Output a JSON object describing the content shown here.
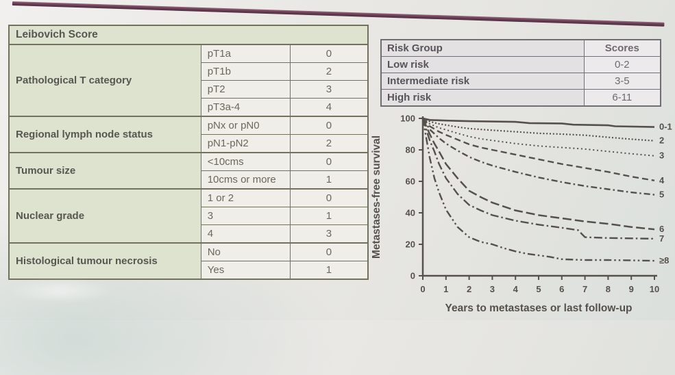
{
  "leibovich_table": {
    "title": "Leibovich Score",
    "groups": [
      {
        "category": "Pathological T category",
        "rows": [
          {
            "value": "pT1a",
            "score": "0"
          },
          {
            "value": "pT1b",
            "score": "2"
          },
          {
            "value": "pT2",
            "score": "3"
          },
          {
            "value": "pT3a-4",
            "score": "4"
          }
        ]
      },
      {
        "category": "Regional lymph node status",
        "rows": [
          {
            "value": "pNx or pN0",
            "score": "0"
          },
          {
            "value": "pN1-pN2",
            "score": "2"
          }
        ]
      },
      {
        "category": "Tumour size",
        "rows": [
          {
            "value": "<10cms",
            "score": "0"
          },
          {
            "value": "10cms or more",
            "score": "1"
          }
        ]
      },
      {
        "category": "Nuclear grade",
        "rows": [
          {
            "value": "1 or 2",
            "score": "0"
          },
          {
            "value": "3",
            "score": "1"
          },
          {
            "value": "4",
            "score": "3"
          }
        ]
      },
      {
        "category": "Histological tumour necrosis",
        "rows": [
          {
            "value": "No",
            "score": "0"
          },
          {
            "value": "Yes",
            "score": "1"
          }
        ]
      }
    ]
  },
  "risk_table": {
    "headers": [
      "Risk Group",
      "Scores"
    ],
    "rows": [
      {
        "label": "Low risk",
        "scores": "0-2"
      },
      {
        "label": "Intermediate risk",
        "scores": "3-5"
      },
      {
        "label": "High risk",
        "scores": "6-11"
      }
    ]
  },
  "chart_data": {
    "type": "line",
    "subtype": "kaplan-meier",
    "xlabel": "Years to metastases or last follow-up",
    "ylabel": "Metastases-free survival",
    "xlim": [
      0,
      10
    ],
    "ylim": [
      0,
      100
    ],
    "xticks": [
      0,
      1,
      2,
      3,
      4,
      5,
      6,
      7,
      8,
      9,
      10
    ],
    "yticks": [
      0,
      20,
      40,
      60,
      80,
      100
    ],
    "grid": false,
    "legend_position": "right-of-curves",
    "series": [
      {
        "name": "0-1",
        "line_style": "solid",
        "width": 2.6,
        "points": [
          [
            0,
            100
          ],
          [
            0.3,
            99
          ],
          [
            1,
            98.6
          ],
          [
            2,
            98.2
          ],
          [
            3,
            98
          ],
          [
            4,
            97.8
          ],
          [
            4.6,
            97
          ],
          [
            6,
            96.8
          ],
          [
            6.5,
            96
          ],
          [
            8,
            95.6
          ],
          [
            8.3,
            95
          ],
          [
            10,
            94.5
          ]
        ]
      },
      {
        "name": "2",
        "line_style": "dotted",
        "width": 2.2,
        "points": [
          [
            0,
            100
          ],
          [
            0.3,
            98
          ],
          [
            0.7,
            96.5
          ],
          [
            1,
            95.8
          ],
          [
            1.5,
            94.5
          ],
          [
            2,
            93.5
          ],
          [
            2.5,
            93
          ],
          [
            3,
            92.5
          ],
          [
            4,
            91.5
          ],
          [
            5,
            90.5
          ],
          [
            6,
            90
          ],
          [
            7,
            89.3
          ],
          [
            8,
            88
          ],
          [
            9,
            86.8
          ],
          [
            10,
            85.8
          ]
        ]
      },
      {
        "name": "3",
        "line_style": "dotted-fine",
        "width": 2,
        "points": [
          [
            0,
            100
          ],
          [
            0.3,
            96.5
          ],
          [
            0.7,
            94
          ],
          [
            1,
            92.8
          ],
          [
            1.5,
            90.5
          ],
          [
            2,
            88.5
          ],
          [
            2.5,
            87
          ],
          [
            3,
            86
          ],
          [
            3.5,
            85
          ],
          [
            4,
            84
          ],
          [
            5,
            82.5
          ],
          [
            6,
            81.5
          ],
          [
            7,
            80.5
          ],
          [
            8,
            79
          ],
          [
            9,
            77.5
          ],
          [
            10,
            76.2
          ]
        ]
      },
      {
        "name": "4",
        "line_style": "dashed",
        "width": 2.4,
        "points": [
          [
            0,
            100
          ],
          [
            0.3,
            95
          ],
          [
            0.7,
            91.5
          ],
          [
            1,
            89.5
          ],
          [
            1.5,
            86.5
          ],
          [
            2,
            83.5
          ],
          [
            2.5,
            81.5
          ],
          [
            3,
            80
          ],
          [
            4,
            77
          ],
          [
            5,
            74
          ],
          [
            6,
            71
          ],
          [
            7,
            68.5
          ],
          [
            8,
            66
          ],
          [
            9,
            63
          ],
          [
            10,
            60.5
          ]
        ]
      },
      {
        "name": "5",
        "line_style": "dash-dot",
        "width": 2.4,
        "points": [
          [
            0,
            100
          ],
          [
            0.3,
            93
          ],
          [
            0.7,
            87.5
          ],
          [
            1,
            84
          ],
          [
            1.5,
            79.5
          ],
          [
            2,
            75.5
          ],
          [
            2.5,
            72.5
          ],
          [
            3,
            70
          ],
          [
            4,
            66
          ],
          [
            5,
            62.5
          ],
          [
            6,
            59.5
          ],
          [
            7,
            57
          ],
          [
            8,
            55
          ],
          [
            9,
            53
          ],
          [
            10,
            51.5
          ]
        ]
      },
      {
        "name": "6",
        "line_style": "long-dash",
        "width": 2.5,
        "points": [
          [
            0,
            100
          ],
          [
            0.3,
            90
          ],
          [
            0.5,
            84
          ],
          [
            0.7,
            79
          ],
          [
            1,
            71
          ],
          [
            1.5,
            62
          ],
          [
            2,
            54
          ],
          [
            2.5,
            50
          ],
          [
            3,
            46.5
          ],
          [
            4,
            41.5
          ],
          [
            5,
            38.5
          ],
          [
            6,
            36.5
          ],
          [
            7,
            34.5
          ],
          [
            8,
            33
          ],
          [
            9,
            31
          ],
          [
            10,
            29.5
          ]
        ]
      },
      {
        "name": "7",
        "line_style": "dash-dot-long",
        "width": 2.4,
        "points": [
          [
            0,
            100
          ],
          [
            0.3,
            86
          ],
          [
            0.5,
            79
          ],
          [
            0.7,
            71
          ],
          [
            1,
            62
          ],
          [
            1.5,
            52
          ],
          [
            2,
            45
          ],
          [
            2.5,
            41.5
          ],
          [
            3,
            38.5
          ],
          [
            4,
            35
          ],
          [
            5,
            32.5
          ],
          [
            6,
            30.5
          ],
          [
            6.7,
            29
          ],
          [
            7,
            24.5
          ],
          [
            8,
            24
          ],
          [
            9,
            23.8
          ],
          [
            10,
            23.5
          ]
        ]
      },
      {
        "name": "≥8",
        "line_style": "dash-dot-dot",
        "width": 2.4,
        "points": [
          [
            0,
            100
          ],
          [
            0.3,
            75
          ],
          [
            0.5,
            62
          ],
          [
            0.7,
            53
          ],
          [
            1,
            42
          ],
          [
            1.5,
            31
          ],
          [
            2,
            24.5
          ],
          [
            2.5,
            21.5
          ],
          [
            3,
            20
          ],
          [
            3.5,
            17.5
          ],
          [
            4,
            15.5
          ],
          [
            4.5,
            14
          ],
          [
            5,
            13
          ],
          [
            5.5,
            12
          ],
          [
            6,
            10.5
          ],
          [
            7,
            10
          ],
          [
            8,
            10
          ],
          [
            9,
            9.8
          ],
          [
            10,
            9.5
          ]
        ]
      }
    ]
  },
  "colors": {
    "accent_bar": "#6a3f55",
    "table_green": "#dee3d0",
    "table_cell": "#efeee9",
    "table_border": "#72715e",
    "table_ink": "#585650",
    "risk_bg": "#e4e1e3",
    "risk_scores_bg": "#eceaeb",
    "risk_border": "#716d74",
    "risk_ink": "#57535b",
    "chart_ink": "#56504a"
  }
}
